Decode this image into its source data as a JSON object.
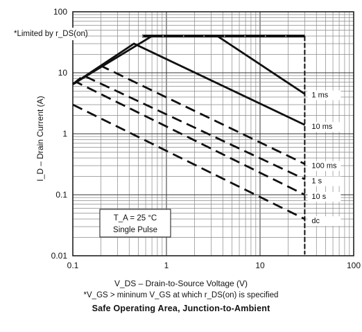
{
  "chart_data": {
    "type": "line",
    "title": "Safe Operating Area, Junction-to-Ambient",
    "xlabel": "V_DS – Drain-to-Source Voltage (V)",
    "ylabel": "I_D – Drain Current (A)",
    "footnote": "*V_GS > mininum V_GS at which r_DS(on) is specified",
    "xscale": "log",
    "yscale": "log",
    "xlim": [
      0.1,
      100
    ],
    "ylim": [
      0.01,
      100
    ],
    "xticks": [
      "0.1",
      "1",
      "10",
      "100"
    ],
    "yticks": [
      "100",
      "10",
      "1",
      "0.1",
      "0.01"
    ],
    "grid": true,
    "limit_annotation": "*Limited by r_DS(on)",
    "conditions": [
      "T_A = 25 °C",
      "Single Pulse"
    ],
    "ds_limit_x": 30,
    "current_limit_y": 40,
    "series": [
      {
        "name": "1 ms",
        "style": "solid",
        "x": [
          0.1,
          0.7,
          3.5,
          30
        ],
        "y": [
          6.5,
          40,
          40,
          4.5
        ]
      },
      {
        "name": "10 ms",
        "style": "solid",
        "x": [
          0.1,
          0.45,
          30
        ],
        "y": [
          6.5,
          30,
          1.4
        ]
      },
      {
        "name": "100 ms",
        "style": "dashed",
        "x": [
          0.1,
          0.2,
          30
        ],
        "y": [
          6.5,
          13,
          0.32
        ]
      },
      {
        "name": "1 s",
        "style": "dashed",
        "x": [
          0.1,
          0.13,
          30
        ],
        "y": [
          6.5,
          9,
          0.18
        ]
      },
      {
        "name": "10 s",
        "style": "dashed",
        "x": [
          0.1,
          0.11,
          30
        ],
        "y": [
          6.5,
          7,
          0.1
        ]
      },
      {
        "name": "dc",
        "style": "dashed",
        "x": [
          0.1,
          30
        ],
        "y": [
          3.0,
          0.04
        ]
      }
    ]
  }
}
